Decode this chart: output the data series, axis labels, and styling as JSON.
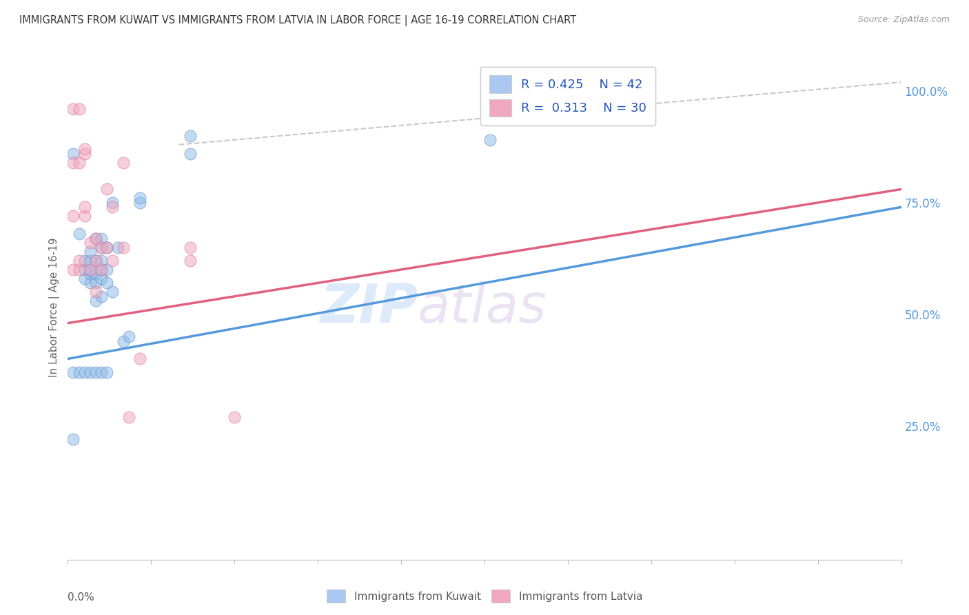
{
  "title": "IMMIGRANTS FROM KUWAIT VS IMMIGRANTS FROM LATVIA IN LABOR FORCE | AGE 16-19 CORRELATION CHART",
  "source": "Source: ZipAtlas.com",
  "ylabel": "In Labor Force | Age 16-19",
  "xmin": 0.0,
  "xmax": 0.15,
  "ymin": -0.05,
  "ymax": 1.08,
  "right_yticks": [
    0.25,
    0.5,
    0.75,
    1.0
  ],
  "right_yticklabels": [
    "25.0%",
    "50.0%",
    "75.0%",
    "100.0%"
  ],
  "watermark_zip": "ZIP",
  "watermark_atlas": "atlas",
  "legend_blue_label1": "R = 0.425",
  "legend_blue_label2": "N = 42",
  "legend_pink_label1": "R =  0.313",
  "legend_pink_label2": "N = 30",
  "legend_blue_color": "#aac8f0",
  "legend_pink_color": "#f0a8c0",
  "scatter_blue_color": "#90bce8",
  "scatter_pink_color": "#f0a8c0",
  "scatter_blue_edge": "#6090c8",
  "scatter_pink_edge": "#e07090",
  "line_blue_color": "#5599dd",
  "line_pink_color": "#e06080",
  "diag_color": "#b0b0b0",
  "grid_color": "#e0e0e0",
  "title_color": "#333333",
  "source_color": "#999999",
  "right_tick_color": "#5599dd",
  "blue_scatter_x": [
    0.001,
    0.002,
    0.003,
    0.003,
    0.003,
    0.004,
    0.004,
    0.004,
    0.004,
    0.004,
    0.005,
    0.005,
    0.005,
    0.005,
    0.005,
    0.006,
    0.006,
    0.006,
    0.006,
    0.006,
    0.006,
    0.007,
    0.007,
    0.007,
    0.008,
    0.008,
    0.009,
    0.01,
    0.011,
    0.013,
    0.013,
    0.022,
    0.022,
    0.076,
    0.001,
    0.001,
    0.002,
    0.003,
    0.004,
    0.005,
    0.006,
    0.007
  ],
  "blue_scatter_y": [
    0.22,
    0.68,
    0.58,
    0.6,
    0.62,
    0.57,
    0.59,
    0.6,
    0.62,
    0.64,
    0.53,
    0.57,
    0.59,
    0.62,
    0.67,
    0.54,
    0.58,
    0.6,
    0.62,
    0.65,
    0.67,
    0.57,
    0.6,
    0.65,
    0.55,
    0.75,
    0.65,
    0.44,
    0.45,
    0.75,
    0.76,
    0.86,
    0.9,
    0.89,
    0.86,
    0.37,
    0.37,
    0.37,
    0.37,
    0.37,
    0.37,
    0.37
  ],
  "pink_scatter_x": [
    0.001,
    0.001,
    0.001,
    0.002,
    0.002,
    0.002,
    0.003,
    0.003,
    0.003,
    0.004,
    0.004,
    0.005,
    0.005,
    0.006,
    0.006,
    0.007,
    0.007,
    0.008,
    0.008,
    0.01,
    0.01,
    0.011,
    0.013,
    0.022,
    0.022,
    0.03,
    0.001,
    0.002,
    0.003,
    0.005
  ],
  "pink_scatter_y": [
    0.6,
    0.72,
    0.84,
    0.6,
    0.62,
    0.84,
    0.72,
    0.74,
    0.86,
    0.6,
    0.66,
    0.62,
    0.67,
    0.6,
    0.65,
    0.65,
    0.78,
    0.62,
    0.74,
    0.65,
    0.84,
    0.27,
    0.4,
    0.62,
    0.65,
    0.27,
    0.96,
    0.96,
    0.87,
    0.55
  ],
  "blue_line_x": [
    0.0,
    0.15
  ],
  "blue_line_y": [
    0.4,
    0.74
  ],
  "pink_line_x": [
    0.0,
    0.15
  ],
  "pink_line_y": [
    0.48,
    0.78
  ],
  "diag_line_x": [
    0.02,
    0.15
  ],
  "diag_line_y": [
    0.88,
    1.02
  ],
  "scatter_size": 150,
  "scatter_alpha": 0.55,
  "bottom_legend_items": [
    "Immigrants from Kuwait",
    "Immigrants from Latvia"
  ]
}
